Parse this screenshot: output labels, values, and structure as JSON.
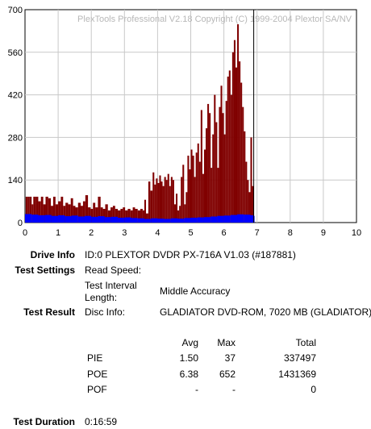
{
  "chart_data": {
    "type": "bar",
    "watermark": "PlexTools Professional V2.18 Copyright (C) 1999-2004 Plextor SA/NV",
    "xlim": [
      0,
      10
    ],
    "ylim": [
      0,
      700
    ],
    "x_ticks": [
      "0",
      "1",
      "2",
      "3",
      "4",
      "5",
      "6",
      "7",
      "8",
      "9",
      "10"
    ],
    "y_ticks": [
      "0",
      "140",
      "280",
      "420",
      "560",
      "700"
    ],
    "grid": true,
    "scan_end_x": 6.9,
    "series": [
      {
        "name": "POE",
        "color": "#800000",
        "points": [
          [
            0.02,
            85
          ],
          [
            0.08,
            85
          ],
          [
            0.14,
            85
          ],
          [
            0.2,
            60
          ],
          [
            0.25,
            85
          ],
          [
            0.32,
            85
          ],
          [
            0.4,
            70
          ],
          [
            0.48,
            85
          ],
          [
            0.55,
            60
          ],
          [
            0.62,
            85
          ],
          [
            0.7,
            80
          ],
          [
            0.78,
            55
          ],
          [
            0.85,
            85
          ],
          [
            0.92,
            60
          ],
          [
            1.0,
            70
          ],
          [
            1.08,
            85
          ],
          [
            1.15,
            55
          ],
          [
            1.22,
            65
          ],
          [
            1.3,
            60
          ],
          [
            1.38,
            80
          ],
          [
            1.45,
            55
          ],
          [
            1.52,
            50
          ],
          [
            1.6,
            65
          ],
          [
            1.68,
            55
          ],
          [
            1.75,
            70
          ],
          [
            1.82,
            90
          ],
          [
            1.9,
            50
          ],
          [
            1.98,
            45
          ],
          [
            2.05,
            65
          ],
          [
            2.12,
            50
          ],
          [
            2.2,
            85
          ],
          [
            2.28,
            50
          ],
          [
            2.35,
            45
          ],
          [
            2.42,
            60
          ],
          [
            2.5,
            40
          ],
          [
            2.58,
            50
          ],
          [
            2.65,
            55
          ],
          [
            2.72,
            45
          ],
          [
            2.8,
            40
          ],
          [
            2.88,
            45
          ],
          [
            2.95,
            50
          ],
          [
            3.02,
            40
          ],
          [
            3.1,
            45
          ],
          [
            3.18,
            40
          ],
          [
            3.25,
            50
          ],
          [
            3.32,
            45
          ],
          [
            3.4,
            40
          ],
          [
            3.48,
            45
          ],
          [
            3.55,
            40
          ],
          [
            3.6,
            75
          ],
          [
            3.65,
            30
          ],
          [
            3.72,
            135
          ],
          [
            3.78,
            105
          ],
          [
            3.85,
            165
          ],
          [
            3.9,
            125
          ],
          [
            3.95,
            145
          ],
          [
            4.0,
            130
          ],
          [
            4.05,
            155
          ],
          [
            4.1,
            135
          ],
          [
            4.15,
            120
          ],
          [
            4.2,
            150
          ],
          [
            4.25,
            140
          ],
          [
            4.3,
            160
          ],
          [
            4.35,
            120
          ],
          [
            4.4,
            150
          ],
          [
            4.45,
            140
          ],
          [
            4.5,
            60
          ],
          [
            4.55,
            95
          ],
          [
            4.6,
            40
          ],
          [
            4.65,
            55
          ],
          [
            4.7,
            150
          ],
          [
            4.75,
            190
          ],
          [
            4.8,
            60
          ],
          [
            4.85,
            100
          ],
          [
            4.9,
            220
          ],
          [
            4.95,
            175
          ],
          [
            5.0,
            240
          ],
          [
            5.05,
            220
          ],
          [
            5.1,
            150
          ],
          [
            5.15,
            230
          ],
          [
            5.2,
            260
          ],
          [
            5.25,
            200
          ],
          [
            5.3,
            370
          ],
          [
            5.35,
            160
          ],
          [
            5.4,
            240
          ],
          [
            5.45,
            310
          ],
          [
            5.5,
            390
          ],
          [
            5.55,
            360
          ],
          [
            5.6,
            180
          ],
          [
            5.65,
            290
          ],
          [
            5.7,
            420
          ],
          [
            5.75,
            330
          ],
          [
            5.8,
            180
          ],
          [
            5.85,
            380
          ],
          [
            5.9,
            450
          ],
          [
            5.95,
            360
          ],
          [
            6.0,
            290
          ],
          [
            6.05,
            400
          ],
          [
            6.1,
            480
          ],
          [
            6.15,
            500
          ],
          [
            6.2,
            420
          ],
          [
            6.25,
            560
          ],
          [
            6.3,
            600
          ],
          [
            6.35,
            510
          ],
          [
            6.4,
            652
          ],
          [
            6.45,
            530
          ],
          [
            6.5,
            460
          ],
          [
            6.55,
            380
          ],
          [
            6.6,
            300
          ],
          [
            6.65,
            200
          ],
          [
            6.7,
            140
          ],
          [
            6.75,
            100
          ],
          [
            6.8,
            280
          ],
          [
            6.85,
            120
          ]
        ]
      },
      {
        "name": "PIE",
        "color": "#0000ff",
        "points": [
          [
            0.0,
            28
          ],
          [
            0.2,
            26
          ],
          [
            0.4,
            24
          ],
          [
            0.6,
            25
          ],
          [
            0.8,
            22
          ],
          [
            1.0,
            24
          ],
          [
            1.2,
            21
          ],
          [
            1.4,
            23
          ],
          [
            1.6,
            20
          ],
          [
            1.8,
            22
          ],
          [
            2.0,
            19
          ],
          [
            2.2,
            21
          ],
          [
            2.4,
            18
          ],
          [
            2.6,
            19
          ],
          [
            2.8,
            16
          ],
          [
            3.0,
            17
          ],
          [
            3.2,
            15
          ],
          [
            3.4,
            14
          ],
          [
            3.6,
            12
          ],
          [
            3.8,
            14
          ],
          [
            4.0,
            13
          ],
          [
            4.2,
            12
          ],
          [
            4.4,
            14
          ],
          [
            4.6,
            13
          ],
          [
            4.8,
            15
          ],
          [
            5.0,
            16
          ],
          [
            5.2,
            17
          ],
          [
            5.4,
            18
          ],
          [
            5.6,
            20
          ],
          [
            5.8,
            22
          ],
          [
            6.0,
            23
          ],
          [
            6.2,
            25
          ],
          [
            6.4,
            27
          ],
          [
            6.6,
            26
          ],
          [
            6.8,
            24
          ],
          [
            6.9,
            22
          ]
        ]
      }
    ]
  },
  "info": {
    "drive_info": {
      "label": "Drive Info",
      "value": "ID:0 PLEXTOR DVDR PX-716A V1.03 (#187881)"
    },
    "test_settings": {
      "label": "Test Settings",
      "read_speed_label": "Read Speed:",
      "read_speed_value": "",
      "interval_label_1": "Test Interval",
      "interval_label_2": "Length:",
      "interval_value": "Middle Accuracy"
    },
    "test_result": {
      "label": "Test Result",
      "disc_info_label": "Disc Info:",
      "disc_info_value": "GLADIATOR DVD-ROM, 7020 MB (GLADIATOR)"
    },
    "table": {
      "headers": {
        "avg": "Avg",
        "max": "Max",
        "total": "Total"
      },
      "rows": [
        {
          "name": "PIE",
          "avg": "1.50",
          "max": "37",
          "total": "337497"
        },
        {
          "name": "POE",
          "avg": "6.38",
          "max": "652",
          "total": "1431369"
        },
        {
          "name": "POF",
          "avg": "-",
          "max": "-",
          "total": "0"
        }
      ]
    },
    "test_duration": {
      "label": "Test Duration",
      "value": "0:16:59"
    }
  }
}
